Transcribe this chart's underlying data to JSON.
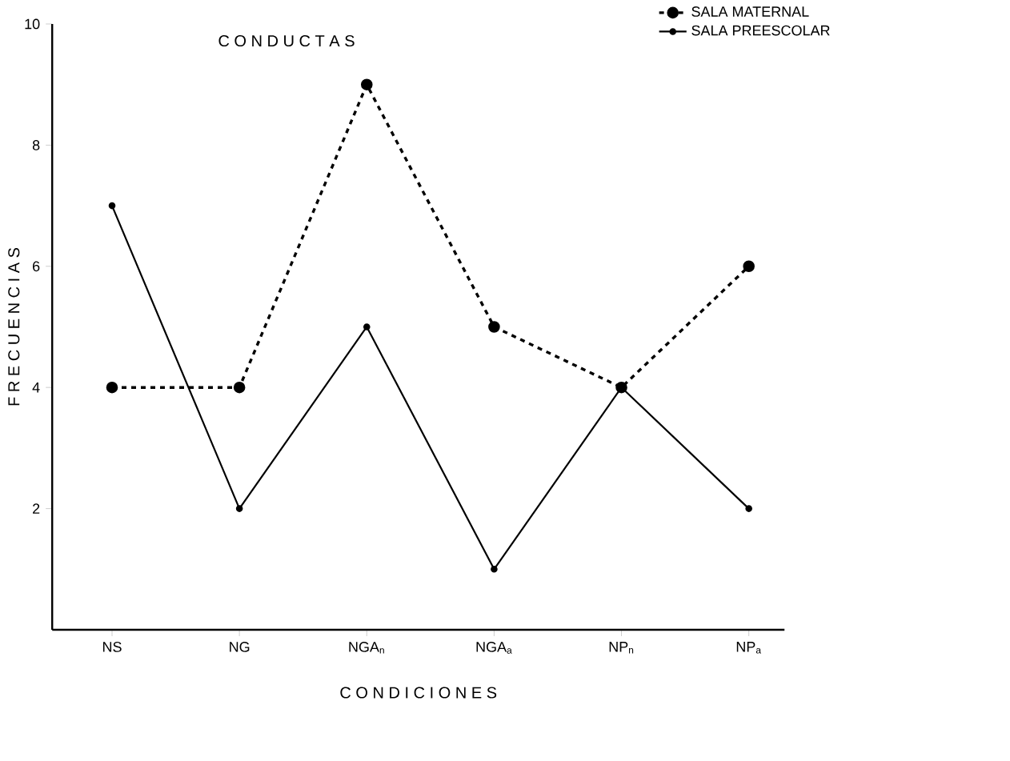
{
  "chart_data": {
    "type": "line",
    "title": "C O N D U C T A S",
    "xlabel": "C O N D I C I O N E S",
    "ylabel": "F R E C U E N C I A S",
    "categories": [
      "NS",
      "NG",
      "NGA$_{n}$",
      "NGA$_{a}$",
      "NP$_{n}$",
      "NP$_{a}$"
    ],
    "series": [
      {
        "name": "SALA MATERNAL",
        "color": "#000000",
        "line_style": "dashed",
        "values": [
          4,
          4,
          9,
          5,
          4,
          6
        ]
      },
      {
        "name": "SALA PREESCOLAR",
        "color": "#000000",
        "line_style": "solid",
        "values": [
          7,
          2,
          5,
          1,
          4,
          2
        ]
      }
    ],
    "ylim": [
      0,
      10
    ],
    "yticks": [
      2,
      4,
      6,
      8,
      10
    ],
    "marker": "circle",
    "legend": "top right"
  }
}
